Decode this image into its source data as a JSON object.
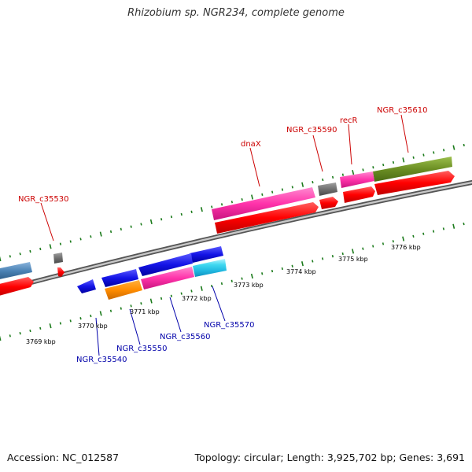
{
  "title": "Rhizobium sp. NGR234, complete genome",
  "footer": {
    "accession": "Accession: NC_012587",
    "summary": "Topology: circular; Length: 3,925,702 bp; Genes: 3,691"
  },
  "colors": {
    "red_label": "#cc0000",
    "blue_label": "#0000aa",
    "backbone": "#888888",
    "tick": "#1a7a1a"
  },
  "kbp_labels": [
    {
      "id": "3769",
      "text": "3769 kbp"
    },
    {
      "id": "3770",
      "text": "3770 kbp"
    },
    {
      "id": "3771",
      "text": "3771 kbp"
    },
    {
      "id": "3772",
      "text": "3772 kbp"
    },
    {
      "id": "3773",
      "text": "3773 kbp"
    },
    {
      "id": "3774",
      "text": "3774 kbp"
    },
    {
      "id": "3775",
      "text": "3775 kbp"
    },
    {
      "id": "3776",
      "text": "3776 kbp"
    }
  ],
  "gene_labels_top": [
    {
      "id": "c35530",
      "text": "NGR_c35530"
    },
    {
      "id": "dnax",
      "text": "dnaX"
    },
    {
      "id": "c35590",
      "text": "NGR_c35590"
    },
    {
      "id": "recr",
      "text": "recR"
    },
    {
      "id": "c35610",
      "text": "NGR_c35610"
    }
  ],
  "gene_labels_bottom": [
    {
      "id": "c35540",
      "text": "NGR_c35540"
    },
    {
      "id": "c35550",
      "text": "NGR_c35550"
    },
    {
      "id": "c35560",
      "text": "NGR_c35560"
    },
    {
      "id": "c35570",
      "text": "NGR_c35570"
    }
  ]
}
